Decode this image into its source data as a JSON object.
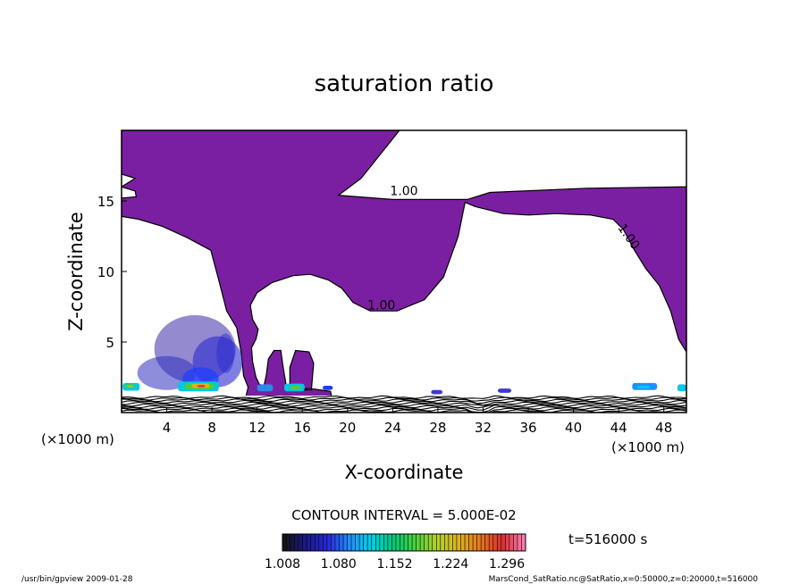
{
  "chart_data": {
    "type": "heatmap",
    "title": "saturation ratio",
    "xlabel": "X-coordinate",
    "ylabel": "Z-coordinate",
    "x_unit": "(×1000 m)",
    "y_unit": "(×1000 m)",
    "xlim": [
      0,
      50
    ],
    "ylim": [
      0,
      20
    ],
    "x_ticks": [
      4,
      8,
      12,
      16,
      20,
      24,
      28,
      32,
      36,
      40,
      44,
      48
    ],
    "y_ticks": [
      5,
      10,
      15
    ],
    "contour_interval": "CONTOUR INTERVAL = 5.000E-02",
    "contour_labels": [
      {
        "text": "1.00",
        "x": 25.0,
        "z": 15.4,
        "angle": 0
      },
      {
        "text": "1.00",
        "x": 44.6,
        "z": 12.3,
        "angle": 55
      },
      {
        "text": "1.00",
        "x": 23.0,
        "z": 7.3,
        "angle": 0
      }
    ],
    "colorbar": {
      "ticks": [
        "1.008",
        "1.080",
        "1.152",
        "1.224",
        "1.296"
      ],
      "min": 1.008,
      "max": 1.32,
      "colors": [
        "#141414",
        "#1a1a8a",
        "#2828e0",
        "#1e90ff",
        "#00d2e6",
        "#00c878",
        "#46d23c",
        "#b4d228",
        "#dcb41e",
        "#e6781e",
        "#dc2d2d",
        "#ff7ab4"
      ]
    },
    "time_label": "t=516000 s",
    "colors": {
      "low_fill": "#7b1fa2",
      "background": "#ffffff"
    }
  },
  "footer": {
    "left": "/usr/bin/gpview   2009-01-28",
    "right": "MarsCond_SatRatio.nc@SatRatio,x=0:50000,z=0:20000,t=516000"
  }
}
